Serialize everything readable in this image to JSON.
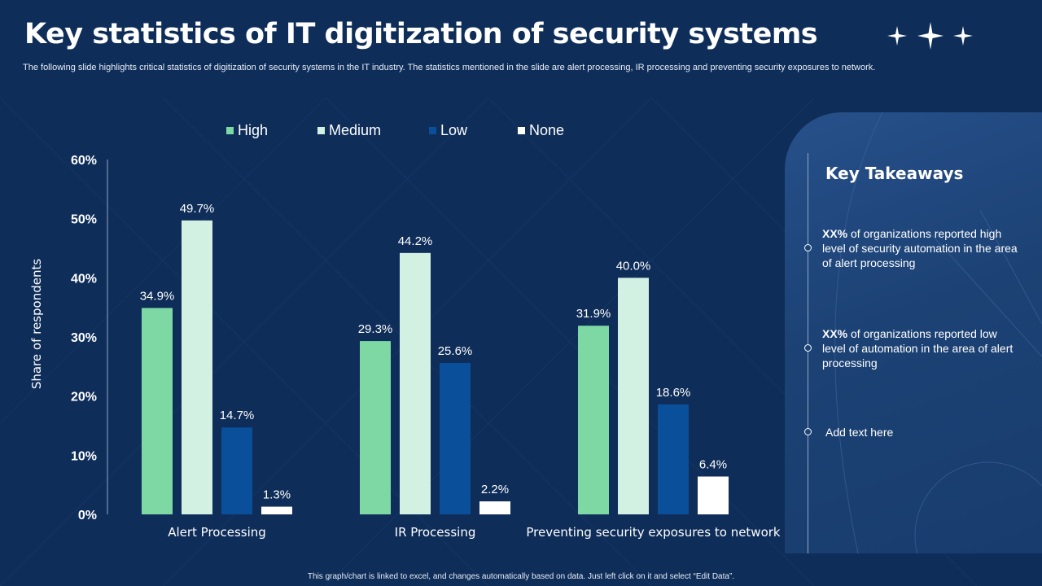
{
  "title": "Key statistics of IT digitization of security systems",
  "subtitle": "The following slide highlights critical statistics of digitization of security systems in the IT industry. The statistics mentioned in the slide are alert processing, IR processing and preventing security exposures to network.",
  "colors": {
    "background": "#0e2d59",
    "high": "#7dd8a3",
    "medium": "#d2f1e2",
    "low": "#0a4f9a",
    "none": "#ffffff"
  },
  "chart_data": {
    "type": "bar",
    "categories": [
      "Alert Processing",
      "IR Processing",
      "Preventing security exposures to network"
    ],
    "series": [
      {
        "name": "High",
        "values": [
          34.9,
          29.3,
          31.9
        ],
        "labels": [
          "34.9%",
          "29.3%",
          "31.9%"
        ]
      },
      {
        "name": "Medium",
        "values": [
          49.7,
          44.2,
          40.0
        ],
        "labels": [
          "49.7%",
          "44.2%",
          "40.0%"
        ]
      },
      {
        "name": "Low",
        "values": [
          14.7,
          25.6,
          18.6
        ],
        "labels": [
          "14.7%",
          "25.6%",
          "18.6%"
        ]
      },
      {
        "name": "None",
        "values": [
          1.3,
          2.2,
          6.4
        ],
        "labels": [
          "1.3%",
          "2.2%",
          "6.4%"
        ]
      }
    ],
    "yticks": [
      "0%",
      "10%",
      "20%",
      "30%",
      "40%",
      "50%",
      "60%"
    ],
    "ylim": [
      0,
      60
    ],
    "ylabel": "Share of respondents",
    "xlabel": "",
    "legend_position": "top"
  },
  "takeaways": {
    "title": "Key Takeaways",
    "items": [
      {
        "bold": "XX%",
        "text": " of organizations  reported high level of security automation in the area of alert processing"
      },
      {
        "bold": "XX%",
        "text": " of organizations reported low level of automation in the area of alert processing"
      },
      {
        "bold": "",
        "text": "Add text here"
      }
    ]
  },
  "footnote": "This graph/chart is linked to excel, and changes automatically based on data. Just left click on it and select “Edit Data”."
}
